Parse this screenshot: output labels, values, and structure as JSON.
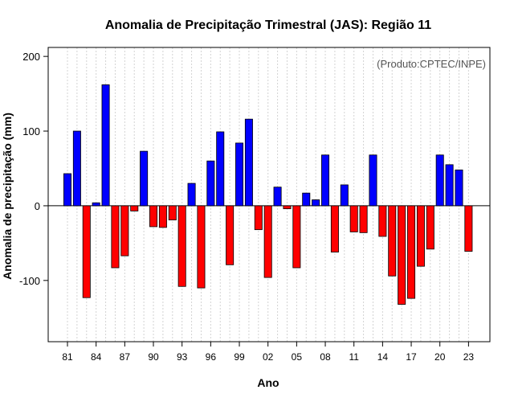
{
  "chart_data": {
    "type": "bar",
    "title": "Anomalia de Precipitação Trimestral (JAS): Região 11",
    "xlabel": "Ano",
    "ylabel": "Anomalia de precipitação (mm)",
    "credit": "(Produto:CPTEC/INPE)",
    "ylim": [
      -182,
      212
    ],
    "yticks": [
      -100,
      0,
      100,
      200
    ],
    "ytick_labels": [
      "-100",
      "0",
      "100",
      "200"
    ],
    "grid": true,
    "xtick_labels": [
      "81",
      "84",
      "87",
      "90",
      "93",
      "96",
      "99",
      "02",
      "05",
      "08",
      "11",
      "14",
      "17",
      "20",
      "23"
    ],
    "categories": [
      "81",
      "82",
      "83",
      "84",
      "85",
      "86",
      "87",
      "88",
      "89",
      "90",
      "91",
      "92",
      "93",
      "94",
      "95",
      "96",
      "97",
      "98",
      "99",
      "00",
      "01",
      "02",
      "03",
      "04",
      "05",
      "06",
      "07",
      "08",
      "09",
      "10",
      "11",
      "12",
      "13",
      "14",
      "15",
      "16",
      "17",
      "18",
      "19",
      "20",
      "21",
      "22",
      "23"
    ],
    "values": [
      43,
      100,
      -123,
      4,
      162,
      -83,
      -67,
      -7,
      73,
      -28,
      -29,
      -19,
      -108,
      30,
      -110,
      60,
      99,
      -79,
      84,
      116,
      -32,
      -96,
      25,
      -4,
      -83,
      17,
      8,
      68,
      -62,
      28,
      -35,
      -36,
      68,
      -41,
      -94,
      -132,
      -124,
      -81,
      -58,
      68,
      55,
      48,
      -61
    ],
    "colors": {
      "positive": "#0000ff",
      "negative": "#ff0000",
      "edge": "#000000",
      "grid": "#d3d3d3"
    }
  }
}
